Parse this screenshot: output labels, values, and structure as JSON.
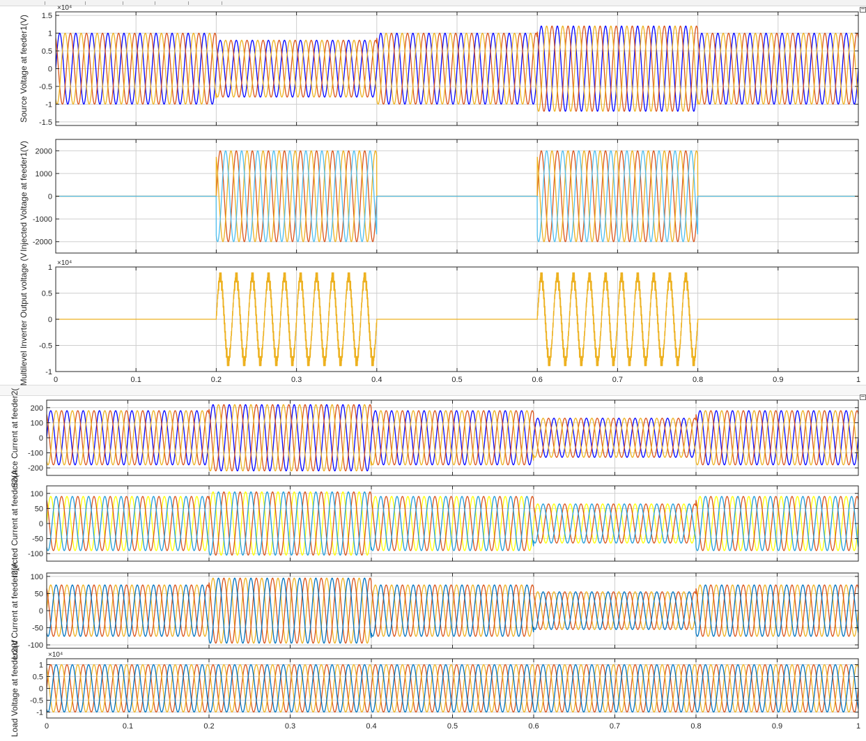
{
  "window": {
    "undock_icon": "undock-icon"
  },
  "chart_data": [
    {
      "type": "line",
      "group": "top",
      "ylabel": "Source Voltage at feeder1(V)",
      "exponent_label": "×10⁴",
      "ylim": [
        -1.6,
        1.6
      ],
      "yticks": [
        -1.5,
        -1,
        -0.5,
        0,
        0.5,
        1,
        1.5
      ],
      "xlim": [
        0,
        1
      ],
      "grid": true,
      "series_colors": [
        "#0000ff",
        "#d95319",
        "#edb120"
      ],
      "segments": [
        {
          "x": [
            0,
            0.2
          ],
          "amplitude": 1.0
        },
        {
          "x": [
            0.2,
            0.4
          ],
          "amplitude": 0.8
        },
        {
          "x": [
            0.4,
            0.6
          ],
          "amplitude": 1.0
        },
        {
          "x": [
            0.6,
            0.8
          ],
          "amplitude": 1.2
        },
        {
          "x": [
            0.8,
            1.0
          ],
          "amplitude": 1.0
        }
      ]
    },
    {
      "type": "line",
      "group": "top",
      "ylabel": "Injected Voltage at feeder1(V)",
      "ylim": [
        -2500,
        2500
      ],
      "yticks": [
        -2000,
        -1000,
        0,
        1000,
        2000
      ],
      "xlim": [
        0,
        1
      ],
      "grid": true,
      "series_colors": [
        "#d95319",
        "#edb120",
        "#4dbeee"
      ],
      "segments": [
        {
          "x": [
            0,
            0.2
          ],
          "amplitude": 0
        },
        {
          "x": [
            0.2,
            0.4
          ],
          "amplitude": 2000
        },
        {
          "x": [
            0.4,
            0.6
          ],
          "amplitude": 0
        },
        {
          "x": [
            0.6,
            0.8
          ],
          "amplitude": 2000
        },
        {
          "x": [
            0.8,
            1.0
          ],
          "amplitude": 0
        }
      ]
    },
    {
      "type": "line",
      "group": "top",
      "ylabel": "Multilevel Inverter Output voltage (V",
      "exponent_label": "×10⁴",
      "ylim": [
        -1,
        1
      ],
      "yticks": [
        -1,
        -0.5,
        0,
        0.5,
        1
      ],
      "xlim": [
        0,
        1
      ],
      "xticks": [
        0,
        0.1,
        0.2,
        0.3,
        0.4,
        0.5,
        0.6,
        0.7,
        0.8,
        0.9,
        1
      ],
      "xtick_labels": [
        "0",
        "0.1",
        "0.2",
        "0.3",
        "0.4",
        "0.5",
        "0.6",
        "0.7",
        "0.8",
        "0.9",
        "1"
      ],
      "grid": true,
      "series_colors": [
        "#edb120"
      ],
      "segments": [
        {
          "x": [
            0,
            0.2
          ],
          "amplitude": 0
        },
        {
          "x": [
            0.2,
            0.4
          ],
          "amplitude": 0.8
        },
        {
          "x": [
            0.4,
            0.6
          ],
          "amplitude": 0
        },
        {
          "x": [
            0.6,
            0.8
          ],
          "amplitude": 0.8
        },
        {
          "x": [
            0.8,
            1.0
          ],
          "amplitude": 0
        }
      ]
    },
    {
      "type": "line",
      "group": "bottom",
      "ylabel": "Source Current at feeder2(",
      "ylim": [
        -250,
        250
      ],
      "yticks": [
        -200,
        -100,
        0,
        100,
        200
      ],
      "xlim": [
        0,
        1
      ],
      "grid": true,
      "series_colors": [
        "#0000ff",
        "#d95319",
        "#edb120"
      ],
      "segments": [
        {
          "x": [
            0,
            0.2
          ],
          "amplitude": 180
        },
        {
          "x": [
            0.2,
            0.4
          ],
          "amplitude": 220
        },
        {
          "x": [
            0.4,
            0.6
          ],
          "amplitude": 180
        },
        {
          "x": [
            0.6,
            0.8
          ],
          "amplitude": 130
        },
        {
          "x": [
            0.8,
            1.0
          ],
          "amplitude": 180
        }
      ]
    },
    {
      "type": "line",
      "group": "bottom",
      "ylabel": "Injected Current at feeder2(A",
      "ylim": [
        -125,
        125
      ],
      "yticks": [
        -100,
        -50,
        0,
        50,
        100
      ],
      "xlim": [
        0,
        1
      ],
      "grid": true,
      "series_colors": [
        "#ffff00",
        "#d95319",
        "#1e9bd7"
      ],
      "segments": [
        {
          "x": [
            0,
            0.2
          ],
          "amplitude": 90
        },
        {
          "x": [
            0.2,
            0.4
          ],
          "amplitude": 105
        },
        {
          "x": [
            0.4,
            0.6
          ],
          "amplitude": 90
        },
        {
          "x": [
            0.6,
            0.8
          ],
          "amplitude": 65
        },
        {
          "x": [
            0.8,
            1.0
          ],
          "amplitude": 90
        }
      ]
    },
    {
      "type": "line",
      "group": "bottom",
      "ylabel": "Load Current at feeder2(A",
      "ylim": [
        -110,
        110
      ],
      "yticks": [
        -100,
        -50,
        0,
        50,
        100
      ],
      "xlim": [
        0,
        1
      ],
      "grid": true,
      "series_colors": [
        "#edb120",
        "#d95319",
        "#0072bd"
      ],
      "segments": [
        {
          "x": [
            0,
            0.2
          ],
          "amplitude": 75
        },
        {
          "x": [
            0.2,
            0.4
          ],
          "amplitude": 95
        },
        {
          "x": [
            0.4,
            0.6
          ],
          "amplitude": 75
        },
        {
          "x": [
            0.6,
            0.8
          ],
          "amplitude": 55
        },
        {
          "x": [
            0.8,
            1.0
          ],
          "amplitude": 75
        }
      ]
    },
    {
      "type": "line",
      "group": "bottom",
      "ylabel": "Load Voltage at feeder2(V",
      "exponent_label": "×10⁴",
      "ylim": [
        -1.25,
        1.25
      ],
      "yticks": [
        -1,
        -0.5,
        0,
        0.5,
        1
      ],
      "xlim": [
        0,
        1
      ],
      "xticks": [
        0,
        0.1,
        0.2,
        0.3,
        0.4,
        0.5,
        0.6,
        0.7,
        0.8,
        0.9,
        1
      ],
      "xtick_labels": [
        "0",
        "0.1",
        "0.2",
        "0.3",
        "0.4",
        "0.5",
        "0.6",
        "0.7",
        "0.8",
        "0.9",
        "1"
      ],
      "grid": true,
      "series_colors": [
        "#d95319",
        "#edb120",
        "#0072bd"
      ],
      "segments": [
        {
          "x": [
            0,
            1.0
          ],
          "amplitude": 1.0
        }
      ]
    }
  ]
}
